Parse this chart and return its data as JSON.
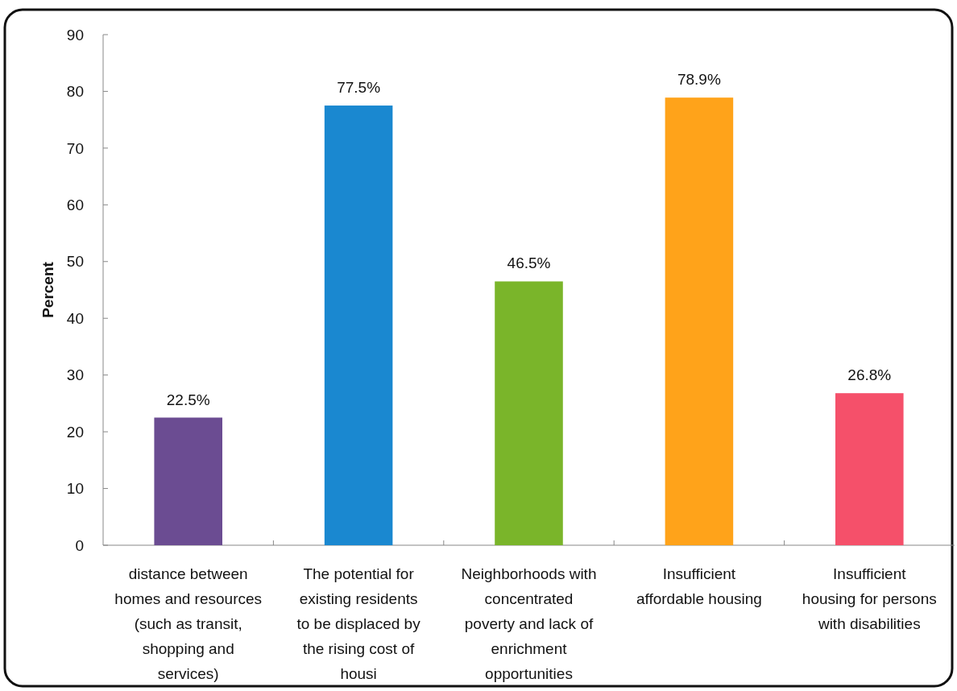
{
  "chart_data": {
    "type": "bar",
    "ylabel": "Percent",
    "categories": [
      "distance between homes and resources (such as transit, shopping and services)",
      "The potential for existing residents to be displaced by the rising cost of housi",
      "Neighborhoods with concentrated poverty and lack of enrichment opportunities",
      "Insufficient affordable housing",
      "Insufficient housing for persons with disabilities"
    ],
    "values": [
      22.5,
      77.5,
      46.5,
      78.9,
      26.8
    ],
    "colors": [
      "#6b4c92",
      "#1a88d0",
      "#7ab52a",
      "#ffa31a",
      "#f5506a"
    ],
    "value_labels": [
      "22.5%",
      "77.5%",
      "46.5%",
      "78.9%",
      "26.8%"
    ],
    "ylim": [
      0,
      90
    ],
    "yticks": [
      0,
      10,
      20,
      30,
      40,
      50,
      60,
      70,
      80,
      90
    ],
    "grid": false
  }
}
